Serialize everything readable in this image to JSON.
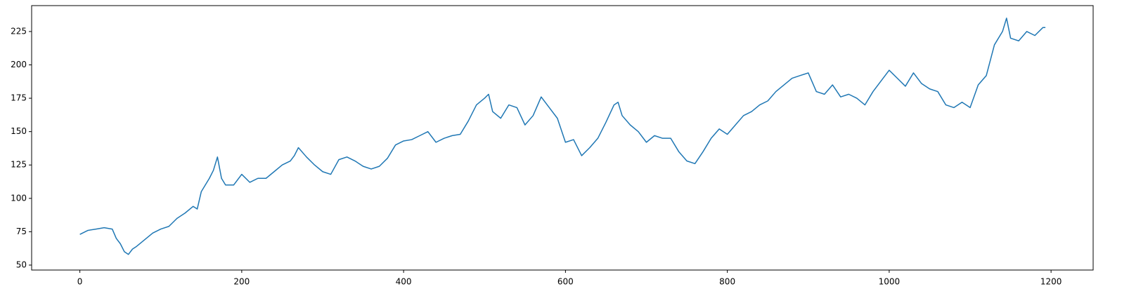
{
  "chart_data": {
    "type": "line",
    "color": "#1f77b4",
    "grid": false,
    "xlim": [
      -59.6,
      1252
    ],
    "ylim": [
      46.3,
      244.4
    ],
    "xticks": [
      0,
      200,
      400,
      600,
      800,
      1000,
      1200
    ],
    "yticks": [
      50,
      75,
      100,
      125,
      150,
      175,
      200,
      225
    ],
    "x": [
      0,
      10,
      20,
      30,
      40,
      45,
      50,
      55,
      60,
      65,
      70,
      80,
      90,
      100,
      110,
      120,
      130,
      140,
      145,
      150,
      155,
      160,
      165,
      170,
      175,
      180,
      190,
      200,
      210,
      220,
      230,
      240,
      250,
      260,
      265,
      270,
      280,
      290,
      300,
      310,
      320,
      330,
      340,
      350,
      360,
      370,
      380,
      390,
      400,
      410,
      420,
      430,
      440,
      450,
      460,
      470,
      480,
      490,
      500,
      505,
      510,
      520,
      530,
      540,
      550,
      560,
      570,
      580,
      590,
      600,
      610,
      620,
      630,
      640,
      650,
      660,
      665,
      670,
      680,
      690,
      700,
      710,
      720,
      730,
      740,
      750,
      760,
      770,
      780,
      790,
      800,
      810,
      820,
      830,
      840,
      850,
      860,
      870,
      880,
      890,
      900,
      910,
      920,
      930,
      940,
      950,
      960,
      970,
      980,
      990,
      1000,
      1010,
      1020,
      1030,
      1040,
      1050,
      1060,
      1070,
      1080,
      1090,
      1100,
      1110,
      1120,
      1130,
      1140,
      1145,
      1150,
      1160,
      1170,
      1180,
      1190,
      1193
    ],
    "values": [
      73,
      76,
      77,
      78,
      77,
      70,
      66,
      60,
      58,
      62,
      64,
      69,
      74,
      77,
      79,
      85,
      89,
      94,
      92,
      105,
      110,
      115,
      121,
      131,
      115,
      110,
      110,
      118,
      112,
      115,
      115,
      120,
      125,
      128,
      132,
      138,
      131,
      125,
      120,
      118,
      129,
      131,
      128,
      124,
      122,
      124,
      130,
      140,
      143,
      144,
      147,
      150,
      142,
      145,
      147,
      148,
      158,
      170,
      175,
      178,
      165,
      160,
      170,
      168,
      155,
      162,
      176,
      168,
      160,
      142,
      144,
      132,
      138,
      145,
      157,
      170,
      172,
      162,
      155,
      150,
      142,
      147,
      145,
      145,
      135,
      128,
      126,
      135,
      145,
      152,
      148,
      155,
      162,
      165,
      170,
      173,
      180,
      185,
      190,
      192,
      194,
      180,
      178,
      185,
      176,
      178,
      175,
      170,
      180,
      188,
      196,
      190,
      184,
      194,
      186,
      182,
      180,
      170,
      168,
      172,
      168,
      185,
      192,
      215,
      225,
      235,
      220,
      218,
      225,
      222,
      228,
      228
    ]
  }
}
